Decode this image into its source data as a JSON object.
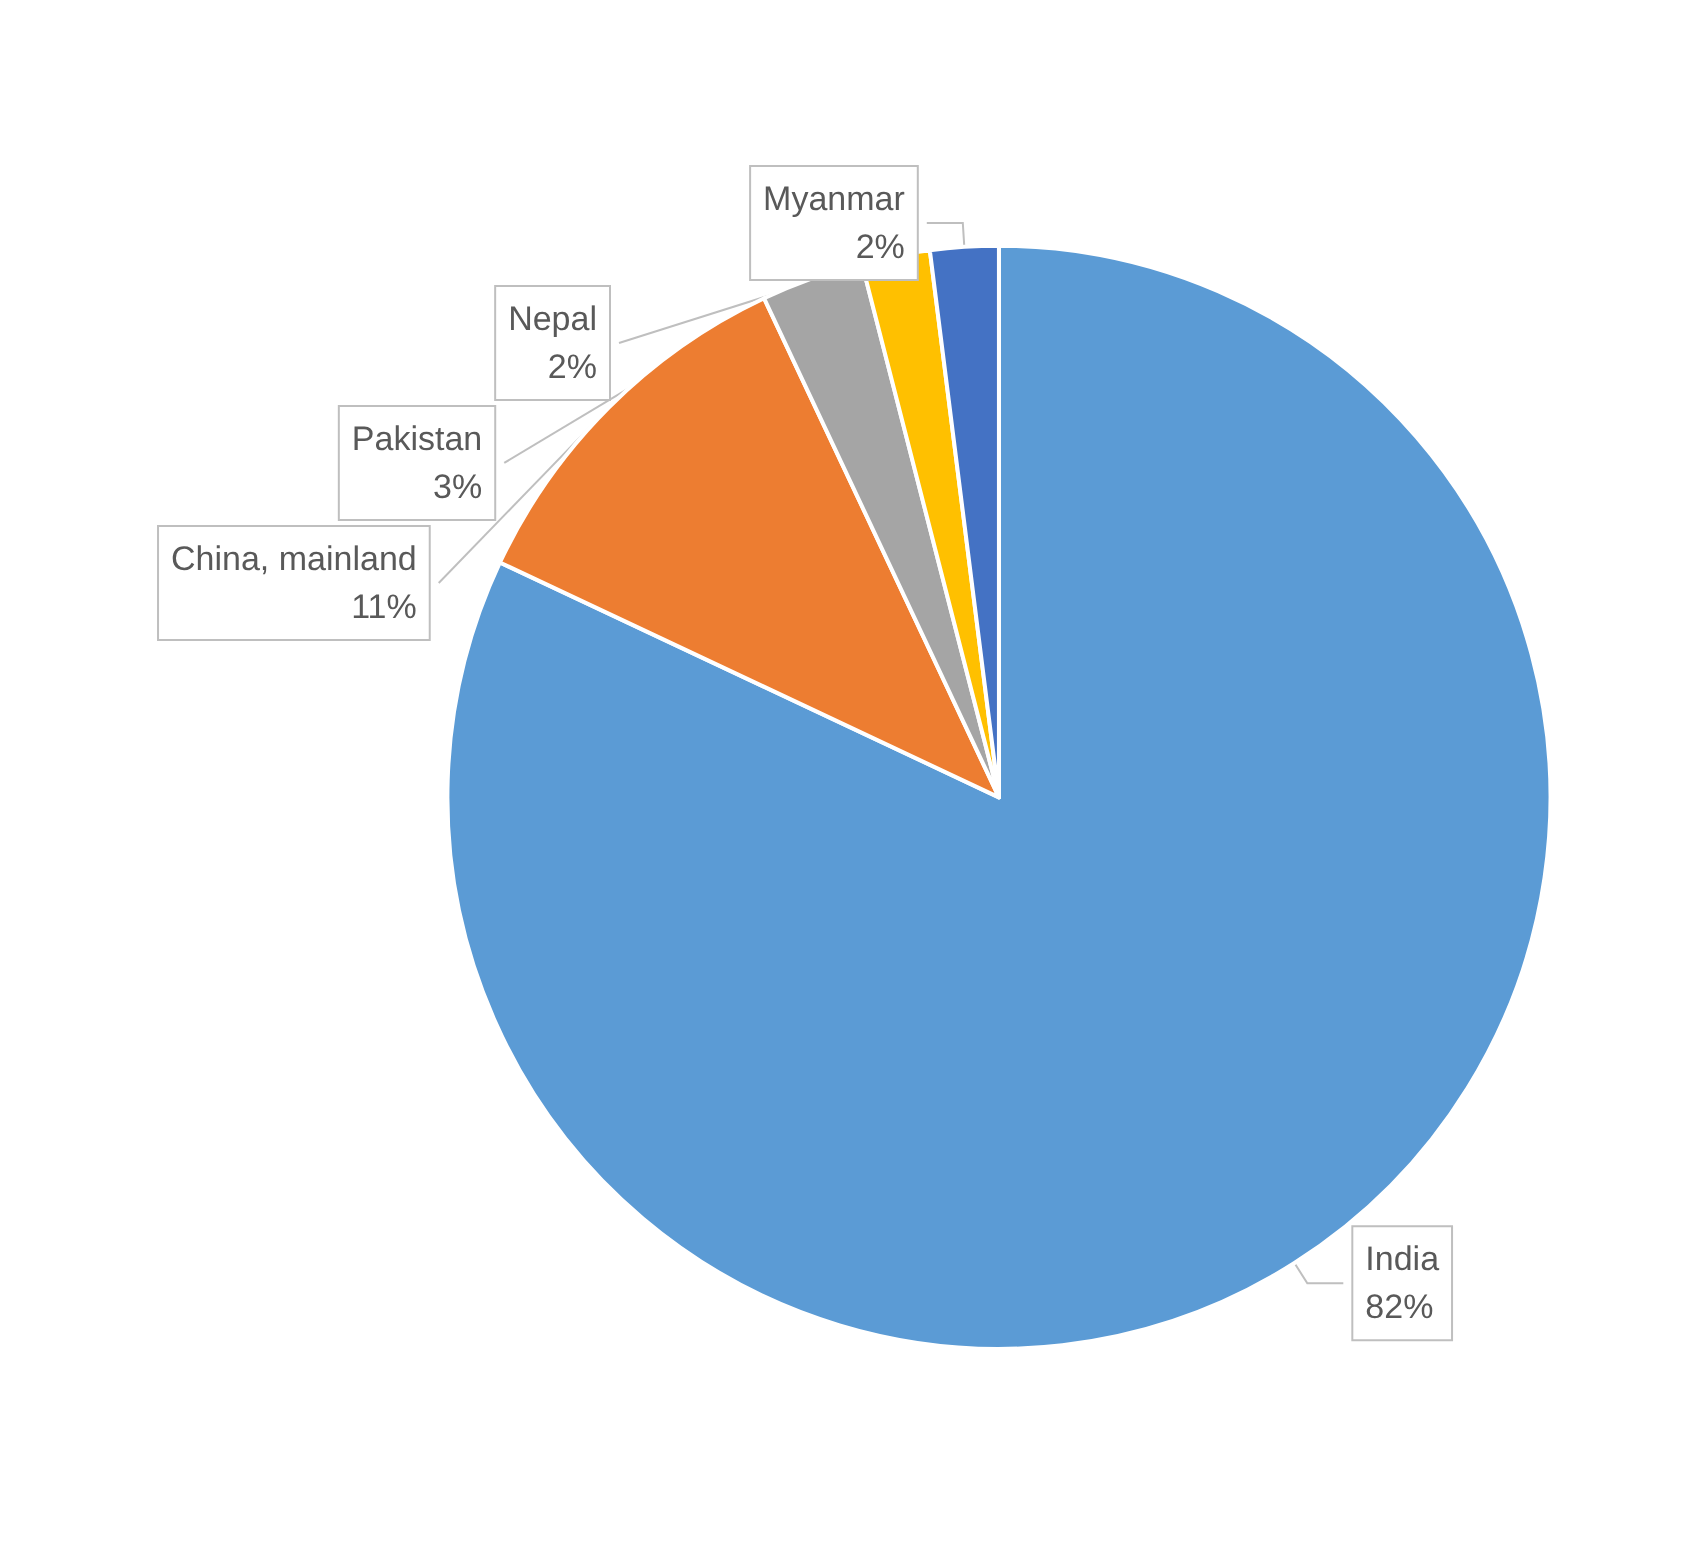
{
  "chart_data": {
    "type": "pie",
    "categories": [
      "India",
      "China, mainland",
      "Pakistan",
      "Nepal",
      "Myanmar"
    ],
    "values": [
      82,
      11,
      3,
      2,
      2
    ],
    "colors": [
      "#5b9bd5",
      "#ed7d31",
      "#a5a5a5",
      "#ffc000",
      "#4472c4"
    ],
    "value_labels": [
      "82%",
      "11%",
      "3%",
      "2%",
      "2%"
    ],
    "legend": false
  }
}
